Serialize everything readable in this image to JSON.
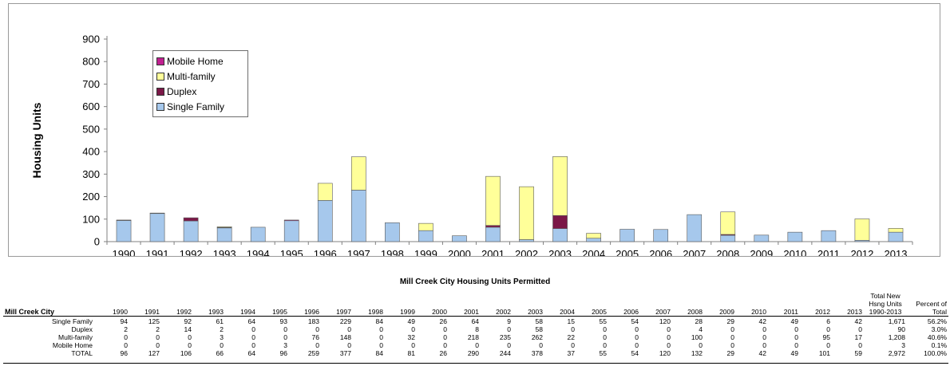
{
  "chart_data": {
    "type": "bar",
    "stacked": true,
    "ylabel": "Housing Units",
    "xlabel": "",
    "ylim": [
      0,
      900
    ],
    "yticks": [
      0,
      100,
      200,
      300,
      400,
      500,
      600,
      700,
      800,
      900
    ],
    "grid": false,
    "legend_position": "top-left",
    "categories": [
      "1990",
      "1991",
      "1992",
      "1993",
      "1994",
      "1995",
      "1996",
      "1997",
      "1998",
      "1999",
      "2000",
      "2001",
      "2002",
      "2003",
      "2004",
      "2005",
      "2006",
      "2007",
      "2008",
      "2009",
      "2010",
      "2011",
      "2012",
      "2013"
    ],
    "series": [
      {
        "name": "Single Family",
        "color": "#a6c8ec",
        "values": [
          94,
          125,
          92,
          61,
          64,
          93,
          183,
          229,
          84,
          49,
          26,
          64,
          9,
          58,
          15,
          55,
          54,
          120,
          28,
          29,
          42,
          49,
          6,
          42
        ]
      },
      {
        "name": "Duplex",
        "color": "#7b1747",
        "values": [
          2,
          2,
          14,
          2,
          0,
          0,
          0,
          0,
          0,
          0,
          0,
          8,
          0,
          58,
          0,
          0,
          0,
          0,
          4,
          0,
          0,
          0,
          0,
          0
        ]
      },
      {
        "name": "Multi-family",
        "color": "#ffff99",
        "values": [
          0,
          0,
          0,
          3,
          0,
          0,
          76,
          148,
          0,
          32,
          0,
          218,
          235,
          262,
          22,
          0,
          0,
          0,
          100,
          0,
          0,
          0,
          95,
          17
        ]
      },
      {
        "name": "Mobile Home",
        "color": "#c02090",
        "values": [
          0,
          0,
          0,
          0,
          0,
          3,
          0,
          0,
          0,
          0,
          0,
          0,
          0,
          0,
          0,
          0,
          0,
          0,
          0,
          0,
          0,
          0,
          0,
          0
        ]
      }
    ],
    "legend_order": [
      "Mobile Home",
      "Multi-family",
      "Duplex",
      "Single Family"
    ]
  },
  "table": {
    "caption": "Mill Creek City Housing Units Permitted",
    "city_header": "Mill Creek City",
    "years": [
      "1990",
      "1991",
      "1992",
      "1993",
      "1994",
      "1995",
      "1996",
      "1997",
      "1998",
      "1999",
      "2000",
      "2001",
      "2002",
      "2003",
      "2004",
      "2005",
      "2006",
      "2007",
      "2008",
      "2009",
      "2010",
      "2011",
      "2012",
      "2013"
    ],
    "total_header": "Total New Hsng Units 1990-2013",
    "percent_header": "Percent of Total",
    "rows": [
      {
        "label": "Single Family",
        "values": [
          "94",
          "125",
          "92",
          "61",
          "64",
          "93",
          "183",
          "229",
          "84",
          "49",
          "26",
          "64",
          "9",
          "58",
          "15",
          "55",
          "54",
          "120",
          "28",
          "29",
          "42",
          "49",
          "6",
          "42"
        ],
        "total": "1,671",
        "percent": "56.2%"
      },
      {
        "label": "Duplex",
        "values": [
          "2",
          "2",
          "14",
          "2",
          "0",
          "0",
          "0",
          "0",
          "0",
          "0",
          "0",
          "8",
          "0",
          "58",
          "0",
          "0",
          "0",
          "0",
          "4",
          "0",
          "0",
          "0",
          "0",
          "0"
        ],
        "total": "90",
        "percent": "3.0%"
      },
      {
        "label": "Multi-family",
        "values": [
          "0",
          "0",
          "0",
          "3",
          "0",
          "0",
          "76",
          "148",
          "0",
          "32",
          "0",
          "218",
          "235",
          "262",
          "22",
          "0",
          "0",
          "0",
          "100",
          "0",
          "0",
          "0",
          "95",
          "17"
        ],
        "total": "1,208",
        "percent": "40.6%"
      },
      {
        "label": "Mobile Home",
        "values": [
          "0",
          "0",
          "0",
          "0",
          "0",
          "3",
          "0",
          "0",
          "0",
          "0",
          "0",
          "0",
          "0",
          "0",
          "0",
          "0",
          "0",
          "0",
          "0",
          "0",
          "0",
          "0",
          "0",
          "0"
        ],
        "total": "3",
        "percent": "0.1%"
      },
      {
        "label": "TOTAL",
        "values": [
          "96",
          "127",
          "106",
          "66",
          "64",
          "96",
          "259",
          "377",
          "84",
          "81",
          "26",
          "290",
          "244",
          "378",
          "37",
          "55",
          "54",
          "120",
          "132",
          "29",
          "42",
          "49",
          "101",
          "59"
        ],
        "total": "2,972",
        "percent": "100.0%"
      }
    ]
  }
}
